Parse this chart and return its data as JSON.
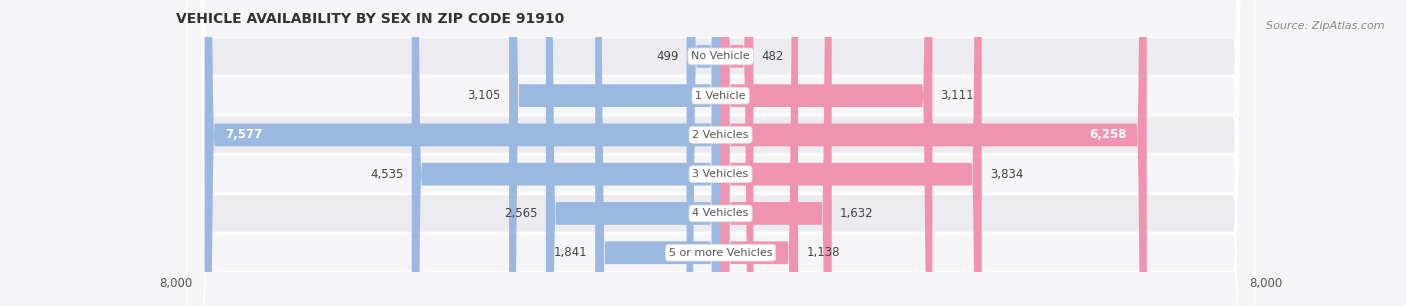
{
  "title": "VEHICLE AVAILABILITY BY SEX IN ZIP CODE 91910",
  "source": "Source: ZipAtlas.com",
  "categories": [
    "No Vehicle",
    "1 Vehicle",
    "2 Vehicles",
    "3 Vehicles",
    "4 Vehicles",
    "5 or more Vehicles"
  ],
  "male_values": [
    499,
    3105,
    7577,
    4535,
    2565,
    1841
  ],
  "female_values": [
    482,
    3111,
    6258,
    3834,
    1632,
    1138
  ],
  "male_color": "#9ab8e0",
  "female_color": "#f093b0",
  "row_bg_color_odd": "#ebebf0",
  "row_bg_color_even": "#f5f5f8",
  "fig_bg_color": "#f5f5f8",
  "x_max": 8000,
  "x_min": -8000,
  "label_fontsize": 8.5,
  "title_fontsize": 10,
  "source_fontsize": 8,
  "tick_fontsize": 8.5,
  "bar_height": 0.58
}
